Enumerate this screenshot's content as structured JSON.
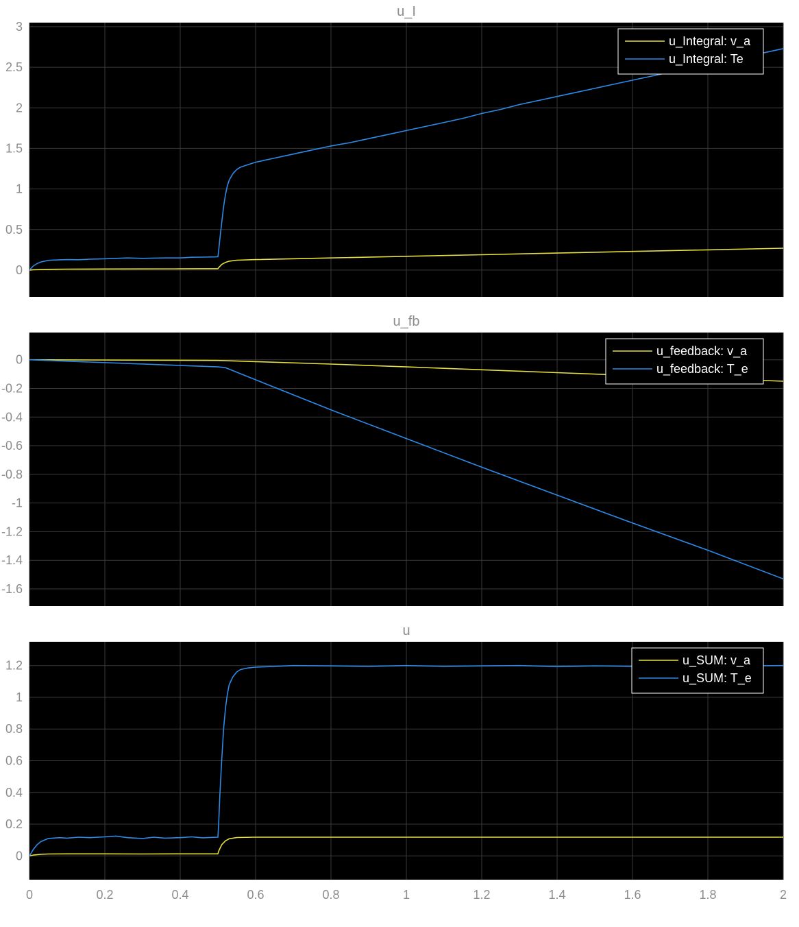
{
  "colors": {
    "page_background": "#ffffff",
    "plot_background": "#000000",
    "grid": "#3a3a3a",
    "tick_label": "#8c8c8c",
    "legend_border": "#ffffff",
    "legend_text": "#ffffff"
  },
  "chart_data": [
    {
      "type": "line",
      "title": "u_I",
      "xlim": [
        0,
        2
      ],
      "ylim": [
        -0.33,
        3.05
      ],
      "xticks": [
        0,
        0.2,
        0.4,
        0.6,
        0.8,
        1,
        1.2,
        1.4,
        1.6,
        1.8,
        2
      ],
      "yticks": [
        0,
        0.5,
        1,
        1.5,
        2,
        2.5,
        3
      ],
      "ytick_labels": [
        "0",
        "0.5",
        "1",
        "1.5",
        "2",
        "2.5",
        "3"
      ],
      "show_xtick_labels": false,
      "grid": true,
      "legend_position": "top-right",
      "series": [
        {
          "name": "u_Integral: v_a",
          "color": "#e6e040",
          "x": [
            0,
            0.01,
            0.05,
            0.1,
            0.2,
            0.3,
            0.4,
            0.45,
            0.5,
            0.502,
            0.51,
            0.52,
            0.53,
            0.55,
            0.6,
            0.8,
            1.0,
            1.2,
            1.4,
            1.6,
            1.8,
            2.0
          ],
          "y": [
            0,
            0.005,
            0.01,
            0.012,
            0.014,
            0.015,
            0.016,
            0.017,
            0.017,
            0.03,
            0.07,
            0.095,
            0.11,
            0.122,
            0.13,
            0.15,
            0.17,
            0.19,
            0.21,
            0.23,
            0.25,
            0.27
          ]
        },
        {
          "name": "u_Integral: Te",
          "color": "#2c8be8",
          "x": [
            0,
            0.01,
            0.02,
            0.03,
            0.05,
            0.07,
            0.1,
            0.13,
            0.16,
            0.2,
            0.23,
            0.26,
            0.3,
            0.33,
            0.36,
            0.4,
            0.43,
            0.46,
            0.49,
            0.5,
            0.501,
            0.505,
            0.51,
            0.515,
            0.52,
            0.525,
            0.53,
            0.54,
            0.55,
            0.56,
            0.58,
            0.6,
            0.62,
            0.65,
            0.7,
            0.75,
            0.8,
            0.85,
            0.9,
            0.95,
            1.0,
            1.05,
            1.1,
            1.15,
            1.2,
            1.25,
            1.3,
            1.35,
            1.4,
            1.45,
            1.5,
            1.55,
            1.6,
            1.65,
            1.7,
            1.75,
            1.8,
            1.85,
            1.9,
            1.95,
            2.0
          ],
          "y": [
            0.0,
            0.05,
            0.08,
            0.1,
            0.12,
            0.125,
            0.13,
            0.128,
            0.135,
            0.14,
            0.145,
            0.15,
            0.145,
            0.148,
            0.15,
            0.15,
            0.158,
            0.16,
            0.163,
            0.165,
            0.2,
            0.38,
            0.58,
            0.78,
            0.93,
            1.04,
            1.11,
            1.19,
            1.24,
            1.27,
            1.3,
            1.33,
            1.35,
            1.38,
            1.43,
            1.48,
            1.53,
            1.57,
            1.62,
            1.67,
            1.72,
            1.77,
            1.82,
            1.87,
            1.93,
            1.98,
            2.04,
            2.09,
            2.14,
            2.19,
            2.24,
            2.29,
            2.34,
            2.39,
            2.44,
            2.49,
            2.54,
            2.59,
            2.63,
            2.68,
            2.73
          ]
        }
      ]
    },
    {
      "type": "line",
      "title": "u_fb",
      "xlim": [
        0,
        2
      ],
      "ylim": [
        -1.72,
        0.19
      ],
      "xticks": [
        0,
        0.2,
        0.4,
        0.6,
        0.8,
        1,
        1.2,
        1.4,
        1.6,
        1.8,
        2
      ],
      "yticks": [
        0,
        -0.2,
        -0.4,
        -0.6,
        -0.8,
        -1,
        -1.2,
        -1.4,
        -1.6
      ],
      "ytick_labels": [
        "0",
        "-0.2",
        "-0.4",
        "-0.6",
        "-0.8",
        "-1",
        "-1.2",
        "-1.4",
        "-1.6"
      ],
      "show_xtick_labels": false,
      "grid": true,
      "legend_position": "top-right",
      "series": [
        {
          "name": "u_feedback: v_a",
          "color": "#e6e040",
          "x": [
            0,
            0.5,
            0.6,
            0.8,
            1.0,
            1.2,
            1.4,
            1.6,
            1.8,
            2.0
          ],
          "y": [
            0,
            -0.005,
            -0.013,
            -0.03,
            -0.05,
            -0.07,
            -0.09,
            -0.11,
            -0.13,
            -0.15
          ]
        },
        {
          "name": "u_feedback: T_e",
          "color": "#2c8be8",
          "x": [
            0,
            0.5,
            0.52,
            0.6,
            0.8,
            1.0,
            1.2,
            1.4,
            1.6,
            1.8,
            2.0
          ],
          "y": [
            0,
            -0.05,
            -0.055,
            -0.14,
            -0.35,
            -0.55,
            -0.75,
            -0.945,
            -1.14,
            -1.33,
            -1.53
          ]
        }
      ]
    },
    {
      "type": "line",
      "title": "u",
      "xlim": [
        0,
        2
      ],
      "ylim": [
        -0.15,
        1.35
      ],
      "xticks": [
        0,
        0.2,
        0.4,
        0.6,
        0.8,
        1,
        1.2,
        1.4,
        1.6,
        1.8,
        2
      ],
      "xtick_labels": [
        "0",
        "0.2",
        "0.4",
        "0.6",
        "0.8",
        "1",
        "1.2",
        "1.4",
        "1.6",
        "1.8",
        "2"
      ],
      "yticks": [
        0,
        0.2,
        0.4,
        0.6,
        0.8,
        1,
        1.2
      ],
      "ytick_labels": [
        "0",
        "0.2",
        "0.4",
        "0.6",
        "0.8",
        "1",
        "1.2"
      ],
      "show_xtick_labels": true,
      "grid": true,
      "legend_position": "top-right",
      "series": [
        {
          "name": "u_SUM: v_a",
          "color": "#e6e040",
          "x": [
            0,
            0.01,
            0.03,
            0.05,
            0.1,
            0.2,
            0.3,
            0.4,
            0.45,
            0.5,
            0.502,
            0.51,
            0.52,
            0.53,
            0.55,
            0.6,
            0.8,
            1.0,
            1.2,
            1.4,
            1.6,
            1.8,
            2.0
          ],
          "y": [
            0,
            0.005,
            0.01,
            0.012,
            0.013,
            0.013,
            0.012,
            0.013,
            0.013,
            0.013,
            0.03,
            0.07,
            0.095,
            0.108,
            0.116,
            0.118,
            0.118,
            0.118,
            0.118,
            0.118,
            0.118,
            0.118,
            0.118
          ]
        },
        {
          "name": "u_SUM: T_e",
          "color": "#2c8be8",
          "x": [
            0,
            0.01,
            0.02,
            0.03,
            0.05,
            0.08,
            0.1,
            0.13,
            0.16,
            0.2,
            0.23,
            0.26,
            0.3,
            0.33,
            0.36,
            0.4,
            0.43,
            0.46,
            0.49,
            0.5,
            0.502,
            0.505,
            0.51,
            0.515,
            0.52,
            0.525,
            0.53,
            0.54,
            0.55,
            0.56,
            0.58,
            0.6,
            0.65,
            0.7,
            0.8,
            0.9,
            1.0,
            1.1,
            1.2,
            1.3,
            1.4,
            1.5,
            1.6,
            1.7,
            1.8,
            1.9,
            2.0
          ],
          "y": [
            0.0,
            0.04,
            0.07,
            0.09,
            0.11,
            0.115,
            0.112,
            0.118,
            0.115,
            0.12,
            0.125,
            0.115,
            0.11,
            0.118,
            0.112,
            0.115,
            0.12,
            0.114,
            0.117,
            0.118,
            0.2,
            0.38,
            0.6,
            0.8,
            0.93,
            1.02,
            1.08,
            1.13,
            1.16,
            1.175,
            1.185,
            1.19,
            1.195,
            1.2,
            1.198,
            1.195,
            1.2,
            1.195,
            1.198,
            1.2,
            1.193,
            1.198,
            1.195,
            1.2,
            1.195,
            1.198,
            1.2
          ]
        }
      ]
    }
  ]
}
